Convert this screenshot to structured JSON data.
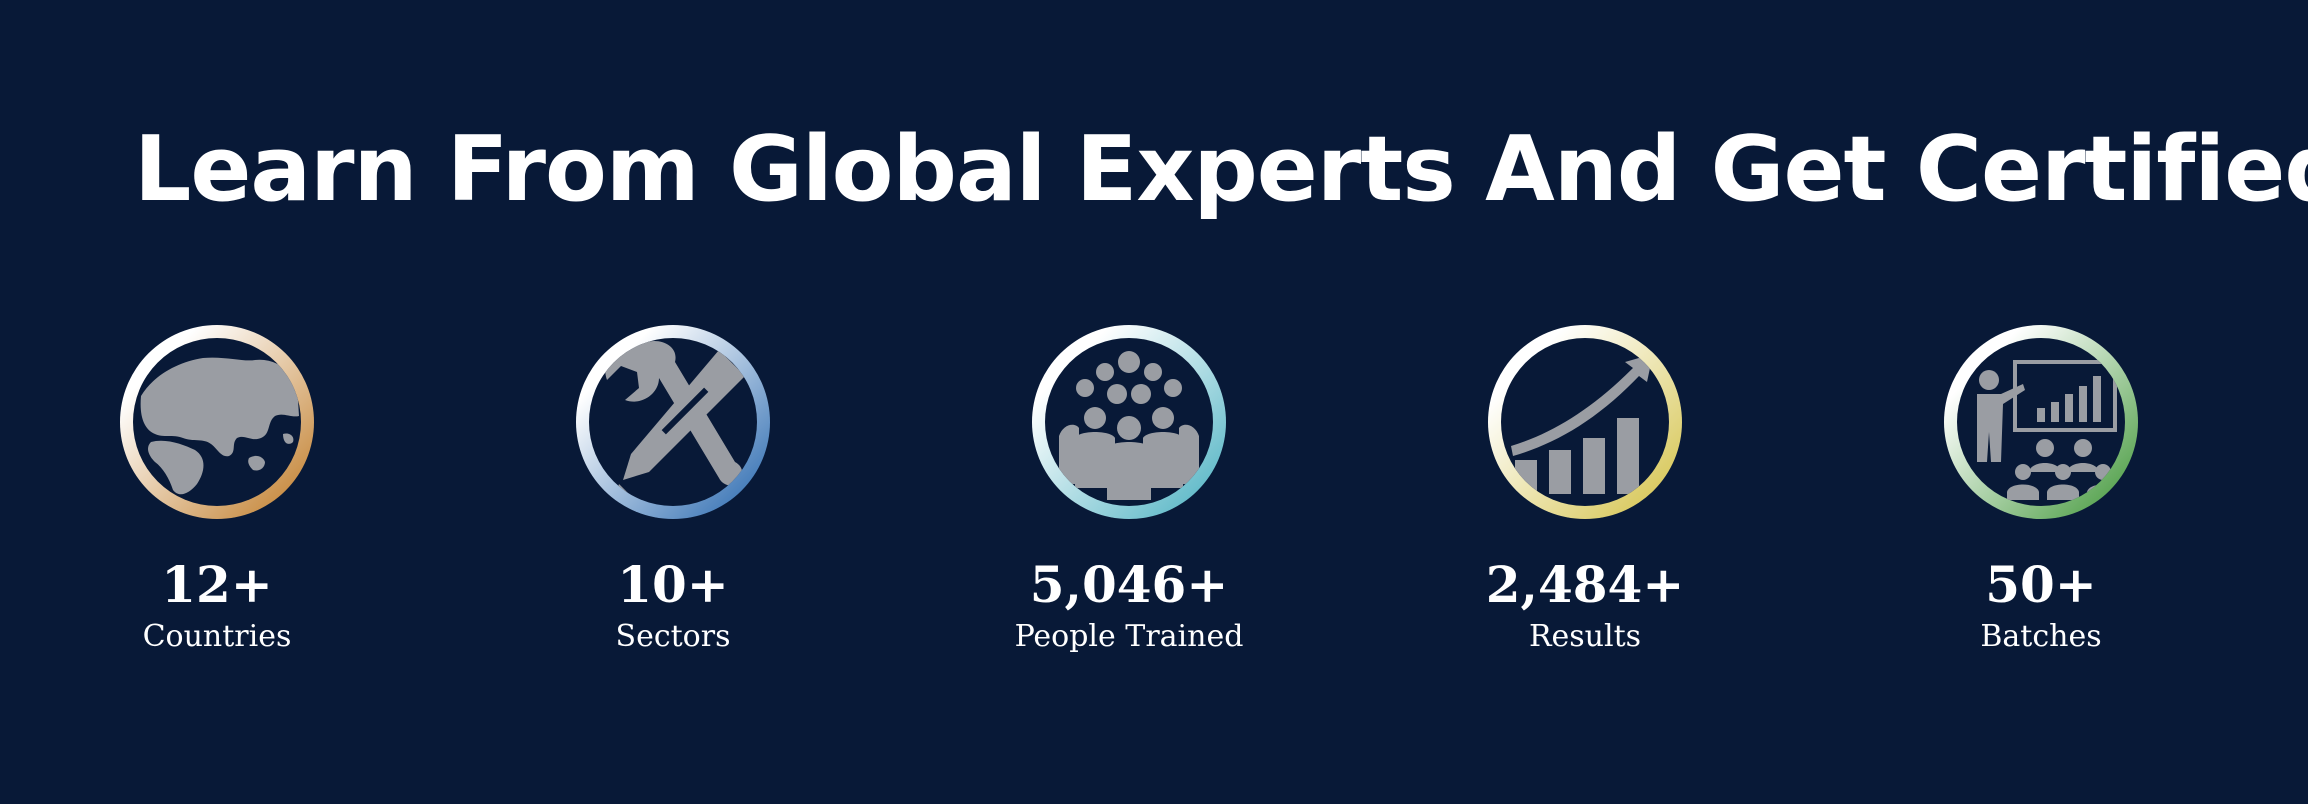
{
  "headline": "Learn From Global Experts And Get Certified",
  "stats": [
    {
      "value": "12+",
      "label": "Countries",
      "icon": "globe-icon",
      "ring_colors": [
        "#ffffff",
        "#c78a3f"
      ]
    },
    {
      "value": "10+",
      "label": "Sectors",
      "icon": "tools-icon",
      "ring_colors": [
        "#ffffff",
        "#3d77b7"
      ]
    },
    {
      "value": "5,046+",
      "label": "People Trained",
      "icon": "people-icon",
      "ring_colors": [
        "#ffffff",
        "#5eb9c8"
      ]
    },
    {
      "value": "2,484+",
      "label": "Results",
      "icon": "growth-chart-icon",
      "ring_colors": [
        "#ffffff",
        "#d8c85a"
      ]
    },
    {
      "value": "50+",
      "label": "Batches",
      "icon": "presentation-icon",
      "ring_colors": [
        "#ffffff",
        "#55a24e"
      ]
    }
  ],
  "colors": {
    "background": "#081937",
    "text": "#ffffff",
    "icon_fill": "#9a9da3"
  }
}
